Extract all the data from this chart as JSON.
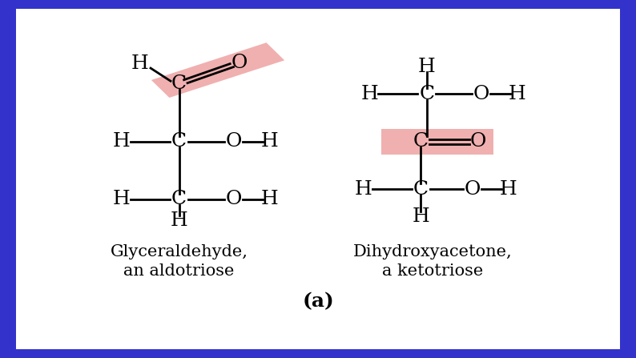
{
  "bg_color": "#3333cc",
  "panel_color": "#ffffff",
  "text_color": "#000000",
  "highlight_color": "#f0b0b0",
  "title_label": "(a)",
  "left_label1": "Glyceraldehyde,",
  "left_label2": "an aldotriose",
  "right_label1": "Dihydroxyacetone,",
  "right_label2": "a ketotriose",
  "font_size_struct": 18,
  "font_size_label": 15,
  "font_size_title": 18,
  "lw": 2.0
}
